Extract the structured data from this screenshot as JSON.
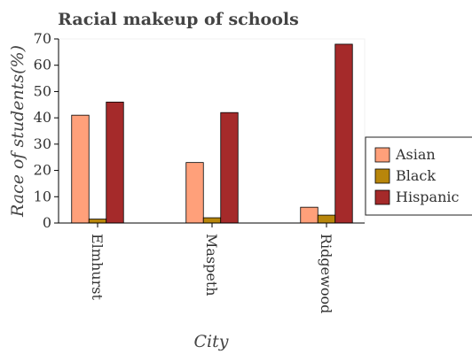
{
  "chart_data": {
    "type": "bar",
    "title": "Racial makeup of schools",
    "xlabel": "City",
    "ylabel": "Race of students(%)",
    "categories": [
      "Elmhurst",
      "Maspeth",
      "Ridgewood"
    ],
    "series": [
      {
        "name": "Asian",
        "values": [
          41,
          23,
          6
        ],
        "color": "#ffa07a"
      },
      {
        "name": "Black",
        "values": [
          1.5,
          2,
          3
        ],
        "color": "#b8860b"
      },
      {
        "name": "Hispanic",
        "values": [
          46,
          42,
          68
        ],
        "color": "#a52a2a"
      }
    ],
    "ylim": [
      0,
      70
    ],
    "yticks": [
      0,
      10,
      20,
      30,
      40,
      50,
      60,
      70
    ],
    "grid": false,
    "legend": "right"
  }
}
